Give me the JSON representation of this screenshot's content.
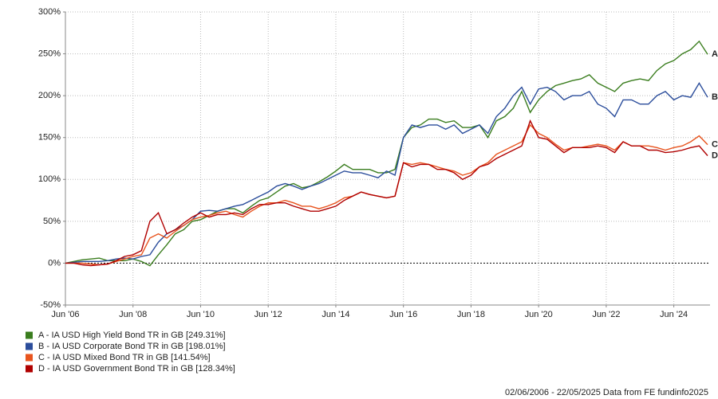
{
  "chart_data": {
    "type": "line",
    "categories": [
      "Jun '06",
      null,
      null,
      null,
      null,
      null,
      null,
      null,
      "Jun '08",
      null,
      null,
      null,
      null,
      null,
      null,
      null,
      "Jun '10",
      null,
      null,
      null,
      null,
      null,
      null,
      null,
      "Jun '12",
      null,
      null,
      null,
      null,
      null,
      null,
      null,
      "Jun '14",
      null,
      null,
      null,
      null,
      null,
      null,
      null,
      "Jun '16",
      null,
      null,
      null,
      null,
      null,
      null,
      null,
      "Jun '18",
      null,
      null,
      null,
      null,
      null,
      null,
      null,
      "Jun '20",
      null,
      null,
      null,
      null,
      null,
      null,
      null,
      "Jun '22",
      null,
      null,
      null,
      null,
      null,
      null,
      null,
      "Jun '24",
      null,
      null,
      null,
      null
    ],
    "ylim": [
      -50,
      300
    ],
    "yticks": [
      {
        "value": -50,
        "label": "-50%"
      },
      {
        "value": 0,
        "label": "0%"
      },
      {
        "value": 50,
        "label": "50%"
      },
      {
        "value": 100,
        "label": "100%"
      },
      {
        "value": 150,
        "label": "150%"
      },
      {
        "value": 200,
        "label": "200%"
      },
      {
        "value": 250,
        "label": "250%"
      },
      {
        "value": 300,
        "label": "300%"
      }
    ],
    "grid": true,
    "series": [
      {
        "name": "A - IA USD High Yield Bond TR in GB [249.31%]",
        "label": "A",
        "color": "#3a7d1e",
        "values": [
          0,
          2,
          4,
          5,
          6,
          3,
          3,
          3,
          5,
          2,
          -3,
          10,
          22,
          35,
          40,
          50,
          52,
          57,
          62,
          65,
          65,
          60,
          68,
          75,
          78,
          85,
          92,
          95,
          90,
          92,
          97,
          103,
          110,
          118,
          112,
          112,
          112,
          108,
          108,
          112,
          150,
          162,
          165,
          172,
          172,
          168,
          170,
          162,
          162,
          165,
          150,
          170,
          175,
          185,
          205,
          180,
          195,
          205,
          212,
          215,
          218,
          220,
          225,
          215,
          210,
          205,
          215,
          218,
          220,
          218,
          230,
          238,
          242,
          250,
          255,
          265,
          249.31
        ]
      },
      {
        "name": "B - IA USD Corporate Bond TR in GB [198.01%]",
        "label": "B",
        "color": "#2b4d9b",
        "values": [
          0,
          1,
          2,
          2,
          2,
          3,
          5,
          6,
          5,
          8,
          10,
          25,
          35,
          40,
          45,
          52,
          62,
          63,
          62,
          65,
          68,
          70,
          75,
          80,
          85,
          92,
          95,
          92,
          88,
          92,
          95,
          100,
          105,
          110,
          108,
          108,
          105,
          102,
          110,
          105,
          150,
          165,
          162,
          165,
          165,
          160,
          165,
          155,
          160,
          165,
          155,
          175,
          185,
          200,
          210,
          190,
          208,
          210,
          205,
          195,
          200,
          200,
          205,
          190,
          185,
          175,
          195,
          195,
          190,
          190,
          200,
          205,
          195,
          200,
          198,
          215,
          198.01
        ]
      },
      {
        "name": "C - IA USD Mixed Bond TR in GB [141.54%]",
        "label": "C",
        "color": "#e8541e",
        "values": [
          0,
          0,
          0,
          -1,
          -2,
          -1,
          2,
          5,
          8,
          10,
          30,
          35,
          30,
          38,
          45,
          52,
          55,
          57,
          60,
          62,
          58,
          55,
          62,
          68,
          72,
          72,
          75,
          72,
          68,
          68,
          65,
          68,
          72,
          78,
          80,
          85,
          82,
          80,
          78,
          80,
          120,
          118,
          120,
          118,
          115,
          112,
          110,
          105,
          108,
          115,
          120,
          130,
          135,
          140,
          145,
          165,
          155,
          150,
          142,
          135,
          138,
          138,
          140,
          142,
          140,
          135,
          145,
          140,
          140,
          140,
          138,
          135,
          138,
          140,
          145,
          152,
          141.54
        ]
      },
      {
        "name": "D - IA USD Government Bond TR in GB [128.34%]",
        "label": "D",
        "color": "#b00000",
        "values": [
          0,
          0,
          -2,
          -3,
          -2,
          -1,
          3,
          8,
          10,
          15,
          50,
          60,
          35,
          40,
          48,
          55,
          60,
          55,
          58,
          58,
          60,
          58,
          65,
          70,
          70,
          72,
          72,
          68,
          65,
          62,
          62,
          65,
          68,
          75,
          80,
          85,
          82,
          80,
          78,
          80,
          120,
          115,
          118,
          118,
          112,
          112,
          108,
          100,
          105,
          115,
          118,
          125,
          130,
          135,
          140,
          170,
          150,
          148,
          140,
          132,
          138,
          138,
          138,
          140,
          138,
          132,
          145,
          140,
          140,
          135,
          135,
          132,
          133,
          135,
          138,
          140,
          128.34
        ]
      }
    ],
    "footer": "02/06/2006 - 22/05/2025 Data from FE fundinfo2025"
  }
}
